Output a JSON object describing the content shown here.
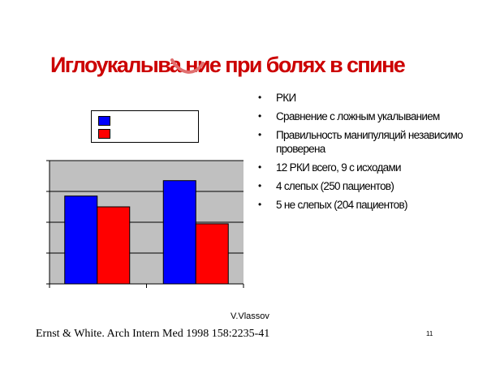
{
  "slide": {
    "title": "Иглоукалыва ние при болях в спине",
    "bullets": [
      "РКИ",
      "Сравнение с ложным укалыванием",
      "Правильность манипуляций независимо проверена",
      "12 РКИ всего, 9 с исходами",
      "4 слепых (250 пациентов)",
      "5 не слепых (204 пациентов)"
    ],
    "author": "V.Vlassov",
    "reference": "Ernst & White. Arch Intern Med 1998 158:2235-41",
    "page_number": "11"
  },
  "colors": {
    "title": "#cc0000",
    "series_blue": "#0000ff",
    "series_red": "#ff0000",
    "plot_area": "#c0c0c0"
  },
  "chart_data": {
    "type": "bar",
    "title": "",
    "xlabel": "",
    "ylabel": "",
    "categories": [
      "",
      ""
    ],
    "series": [
      {
        "color": "#0000ff",
        "values": [
          2.85,
          3.35
        ]
      },
      {
        "color": "#ff0000",
        "values": [
          2.5,
          1.95
        ]
      }
    ],
    "ylim": [
      0,
      4
    ],
    "yticks": [
      0,
      1,
      2,
      3,
      4
    ],
    "grid": true,
    "legend_placement": "top-left",
    "legend_entries": [
      "",
      ""
    ]
  }
}
